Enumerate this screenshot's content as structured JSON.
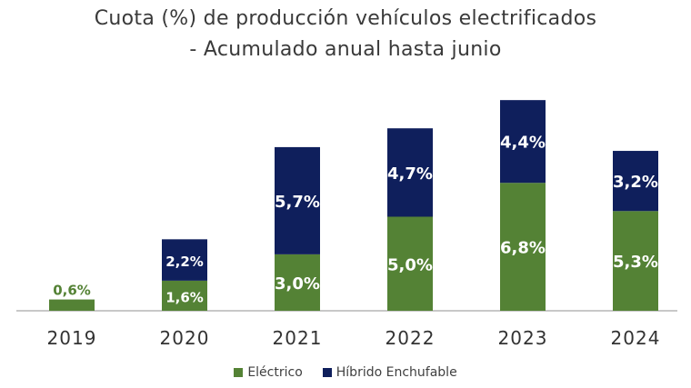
{
  "chart_data": {
    "type": "bar",
    "stacked": true,
    "title": "Cuota (%) de producción vehículos electrificados",
    "subtitle": "- Acumulado anual hasta junio",
    "categories": [
      "2019",
      "2020",
      "2021",
      "2022",
      "2023",
      "2024"
    ],
    "series": [
      {
        "name": "Eléctrico",
        "color": "#548235",
        "values": [
          0.6,
          1.6,
          3.0,
          5.0,
          6.8,
          5.3
        ],
        "labels": [
          "0,6%",
          "1,6%",
          "3,0%",
          "5,0%",
          "6,8%",
          "5,3%"
        ]
      },
      {
        "name": "Híbrido Enchufable",
        "color": "#0f1f5c",
        "values": [
          0,
          2.2,
          5.7,
          4.7,
          4.4,
          3.2
        ],
        "labels": [
          "",
          "2,2%",
          "5,7%",
          "4,7%",
          "4,4%",
          "3,2%"
        ]
      }
    ],
    "xlabel": "",
    "ylabel": "",
    "grid": false,
    "legend": "bottom"
  }
}
